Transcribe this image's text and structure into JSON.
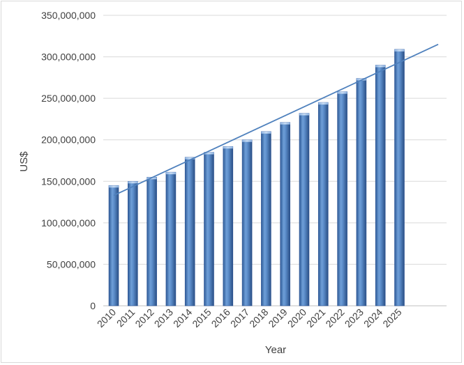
{
  "chart_data": {
    "type": "bar",
    "title": "",
    "xlabel": "Year",
    "ylabel": "US$",
    "categories": [
      "2010",
      "2011",
      "2012",
      "2013",
      "2014",
      "2015",
      "2016",
      "2017",
      "2018",
      "2019",
      "2020",
      "2021",
      "2022",
      "2023",
      "2024",
      "2025"
    ],
    "values": [
      145000000,
      150000000,
      155000000,
      161000000,
      179000000,
      185000000,
      192000000,
      200000000,
      210000000,
      221000000,
      232000000,
      245000000,
      258000000,
      274000000,
      290000000,
      309000000
    ],
    "ylim": [
      0,
      350000000
    ],
    "yticks": [
      "0",
      "50,000,000",
      "100,000,000",
      "150,000,000",
      "200,000,000",
      "250,000,000",
      "300,000,000",
      "350,000,000"
    ],
    "grid": true,
    "legend": "none",
    "trendline": {
      "type": "linear",
      "start_value": 133000000,
      "end_value": 315000000
    },
    "colors": {
      "bar": "#4f81bd",
      "bar_dark": "#2f5597",
      "bar_light": "#8eb4e3",
      "trendline": "#4f81bd"
    }
  }
}
